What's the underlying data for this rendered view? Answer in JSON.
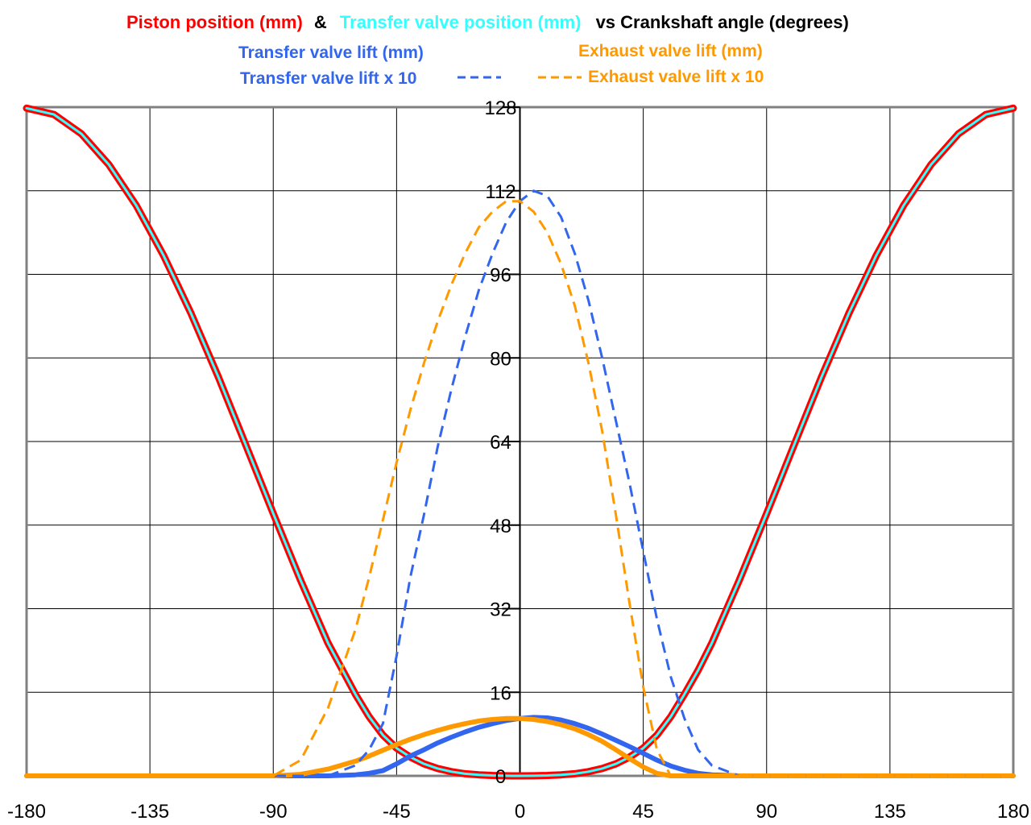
{
  "title": {
    "part1": "Piston position (mm)",
    "amp": "&",
    "part2": "Transfer valve position (mm)",
    "part3": "vs Crankshaft angle (degrees)",
    "colors": {
      "part1": "#ff0000",
      "amp": "#000000",
      "part2": "#33ffff",
      "part3": "#000000"
    }
  },
  "legend": {
    "transfer_lift": {
      "label": "Transfer valve lift (mm)",
      "color": "#3366ee"
    },
    "exhaust_lift": {
      "label": "Exhaust valve lift (mm)",
      "color": "#ff9900"
    },
    "transfer_lift_x10": {
      "label": "Transfer valve lift x 10",
      "color": "#3366ee"
    },
    "exhaust_lift_x10": {
      "label": "Exhaust valve lift x 10",
      "color": "#ff9900"
    }
  },
  "chart_data": {
    "type": "line",
    "xlim": [
      -180,
      180
    ],
    "ylim": [
      0,
      128
    ],
    "x_ticks": [
      "-180",
      "-135",
      "-90",
      "-45",
      "0",
      "45",
      "90",
      "135",
      "180"
    ],
    "y_ticks": [
      "0",
      "16",
      "32",
      "48",
      "64",
      "80",
      "96",
      "112",
      "128"
    ],
    "grid": true,
    "x": [
      -180,
      -170,
      -160,
      -150,
      -140,
      -130,
      -120,
      -110,
      -100,
      -90,
      -80,
      -70,
      -60,
      -55,
      -50,
      -45,
      -40,
      -35,
      -30,
      -25,
      -20,
      -15,
      -10,
      -5,
      0,
      5,
      10,
      15,
      20,
      25,
      30,
      35,
      40,
      45,
      50,
      55,
      60,
      65,
      70,
      80,
      90,
      100,
      110,
      120,
      130,
      140,
      150,
      160,
      170,
      180
    ],
    "series": [
      {
        "name": "Piston position (mm)",
        "color": "#ff0000",
        "style": "solid",
        "values": [
          127.8,
          126.6,
          122.9,
          117.0,
          109.2,
          99.6,
          88.5,
          76.3,
          63.3,
          50.2,
          37.4,
          25.4,
          15.6,
          11.3,
          7.8,
          5.3,
          3.6,
          2.3,
          1.4,
          0.8,
          0.4,
          0.2,
          0.08,
          0.02,
          0,
          0.02,
          0.08,
          0.2,
          0.4,
          0.8,
          1.4,
          2.3,
          3.6,
          5.3,
          7.8,
          11.3,
          15.6,
          20.2,
          25.4,
          37.4,
          50.2,
          63.3,
          76.3,
          88.5,
          99.6,
          109.2,
          117.0,
          122.9,
          126.6,
          127.8
        ]
      },
      {
        "name": "Transfer valve position (mm)",
        "color": "#33ffff",
        "style": "solid",
        "values": [
          127.8,
          126.6,
          122.9,
          117.0,
          109.2,
          99.6,
          88.5,
          76.3,
          63.3,
          50.2,
          37.4,
          25.4,
          15.6,
          11.3,
          7.8,
          5.3,
          3.6,
          2.3,
          1.4,
          0.8,
          0.4,
          0.2,
          0.08,
          0.02,
          0,
          0.02,
          0.08,
          0.2,
          0.4,
          0.8,
          1.4,
          2.3,
          3.6,
          5.3,
          7.8,
          11.3,
          15.6,
          20.2,
          25.4,
          37.4,
          50.2,
          63.3,
          76.3,
          88.5,
          99.6,
          109.2,
          117.0,
          122.9,
          126.6,
          127.8
        ]
      },
      {
        "name": "Transfer valve lift (mm)",
        "color": "#3366ee",
        "style": "solid",
        "values": [
          0,
          0,
          0,
          0,
          0,
          0,
          0,
          0,
          0,
          0,
          0,
          0,
          0.2,
          0.5,
          1.0,
          2.3,
          3.8,
          5.0,
          6.3,
          7.4,
          8.4,
          9.3,
          10.0,
          10.6,
          11.0,
          11.2,
          11.1,
          10.7,
          10.0,
          9.1,
          8.0,
          6.8,
          5.6,
          4.3,
          3.0,
          1.9,
          1.1,
          0.5,
          0.2,
          0,
          0,
          0,
          0,
          0,
          0,
          0,
          0,
          0,
          0,
          0
        ]
      },
      {
        "name": "Exhaust valve lift (mm)",
        "color": "#ff9900",
        "style": "solid",
        "values": [
          0,
          0,
          0,
          0,
          0,
          0,
          0,
          0,
          0,
          0,
          0.3,
          1.3,
          2.8,
          3.8,
          4.9,
          6.0,
          7.0,
          7.9,
          8.7,
          9.4,
          10.0,
          10.5,
          10.8,
          11.0,
          11.0,
          10.8,
          10.4,
          9.8,
          9.0,
          7.9,
          6.6,
          5.0,
          3.3,
          1.7,
          0.5,
          0,
          0,
          0,
          0,
          0,
          0,
          0,
          0,
          0,
          0,
          0,
          0,
          0,
          0,
          0
        ]
      },
      {
        "name": "Transfer valve lift x 10",
        "color": "#3366ee",
        "style": "dashed",
        "values": [
          0,
          0,
          0,
          0,
          0,
          0,
          0,
          0,
          0,
          0,
          0,
          0,
          2,
          5,
          10,
          23,
          38,
          50,
          63,
          74,
          84,
          93,
          100,
          106,
          110,
          112,
          111,
          107,
          100,
          91,
          80,
          68,
          56,
          43,
          30,
          19,
          11,
          5,
          2,
          0,
          0,
          0,
          0,
          0,
          0,
          0,
          0,
          0,
          0,
          0
        ]
      },
      {
        "name": "Exhaust valve lift x 10",
        "color": "#ff9900",
        "style": "dashed",
        "values": [
          0,
          0,
          0,
          0,
          0,
          0,
          0,
          0,
          0,
          0,
          3,
          13,
          28,
          38,
          49,
          60,
          70,
          79,
          87,
          94,
          100,
          105,
          108,
          110,
          110,
          108,
          104,
          98,
          90,
          79,
          66,
          50,
          33,
          17,
          5,
          0,
          0,
          0,
          0,
          0,
          0,
          0,
          0,
          0,
          0,
          0,
          0,
          0,
          0,
          0
        ]
      }
    ]
  }
}
